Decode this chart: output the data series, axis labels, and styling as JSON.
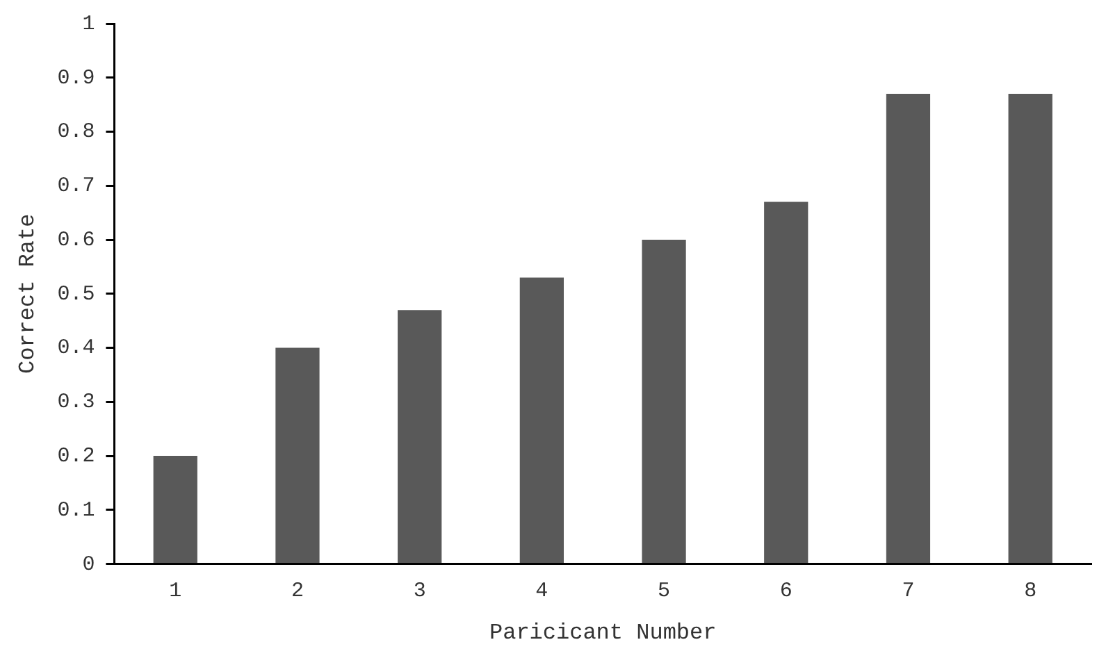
{
  "chart_data": {
    "type": "bar",
    "xlabel": "Paricicant Number",
    "ylabel": "Correct Rate",
    "categories": [
      "1",
      "2",
      "3",
      "4",
      "5",
      "6",
      "7",
      "8"
    ],
    "values": [
      0.2,
      0.4,
      0.47,
      0.53,
      0.6,
      0.67,
      0.87,
      0.87
    ],
    "color": "#595959",
    "ylim": [
      0,
      1
    ],
    "yticks": [
      0,
      0.1,
      0.2,
      0.3,
      0.4,
      0.5,
      0.6,
      0.7,
      0.8,
      0.9,
      1
    ],
    "grid": false,
    "legend": false
  }
}
